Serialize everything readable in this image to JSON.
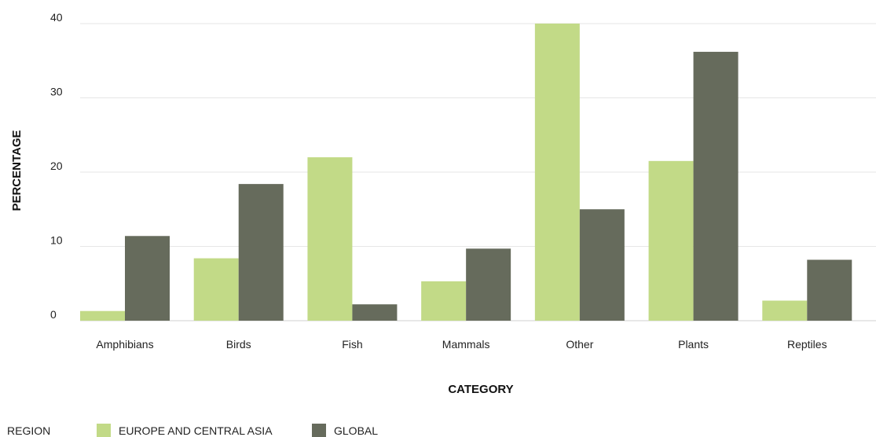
{
  "chart_data": {
    "type": "bar",
    "categories": [
      "Amphibians",
      "Birds",
      "Fish",
      "Mammals",
      "Other",
      "Plants",
      "Reptiles"
    ],
    "series": [
      {
        "name": "EUROPE AND CENTRAL ASIA",
        "color": "#c2da87",
        "values": [
          1.3,
          8.4,
          22.0,
          5.3,
          40.0,
          21.5,
          2.7
        ]
      },
      {
        "name": "GLOBAL",
        "color": "#666b5c",
        "values": [
          11.4,
          18.4,
          2.2,
          9.7,
          15.0,
          36.2,
          8.2
        ]
      }
    ],
    "xlabel": "CATEGORY",
    "ylabel": "PERCENTAGE",
    "ylim": [
      0,
      40
    ],
    "yticks": [
      0,
      10,
      20,
      30,
      40
    ],
    "grid": true,
    "legend": {
      "title": "REGION",
      "placement": "bottom-left"
    }
  }
}
